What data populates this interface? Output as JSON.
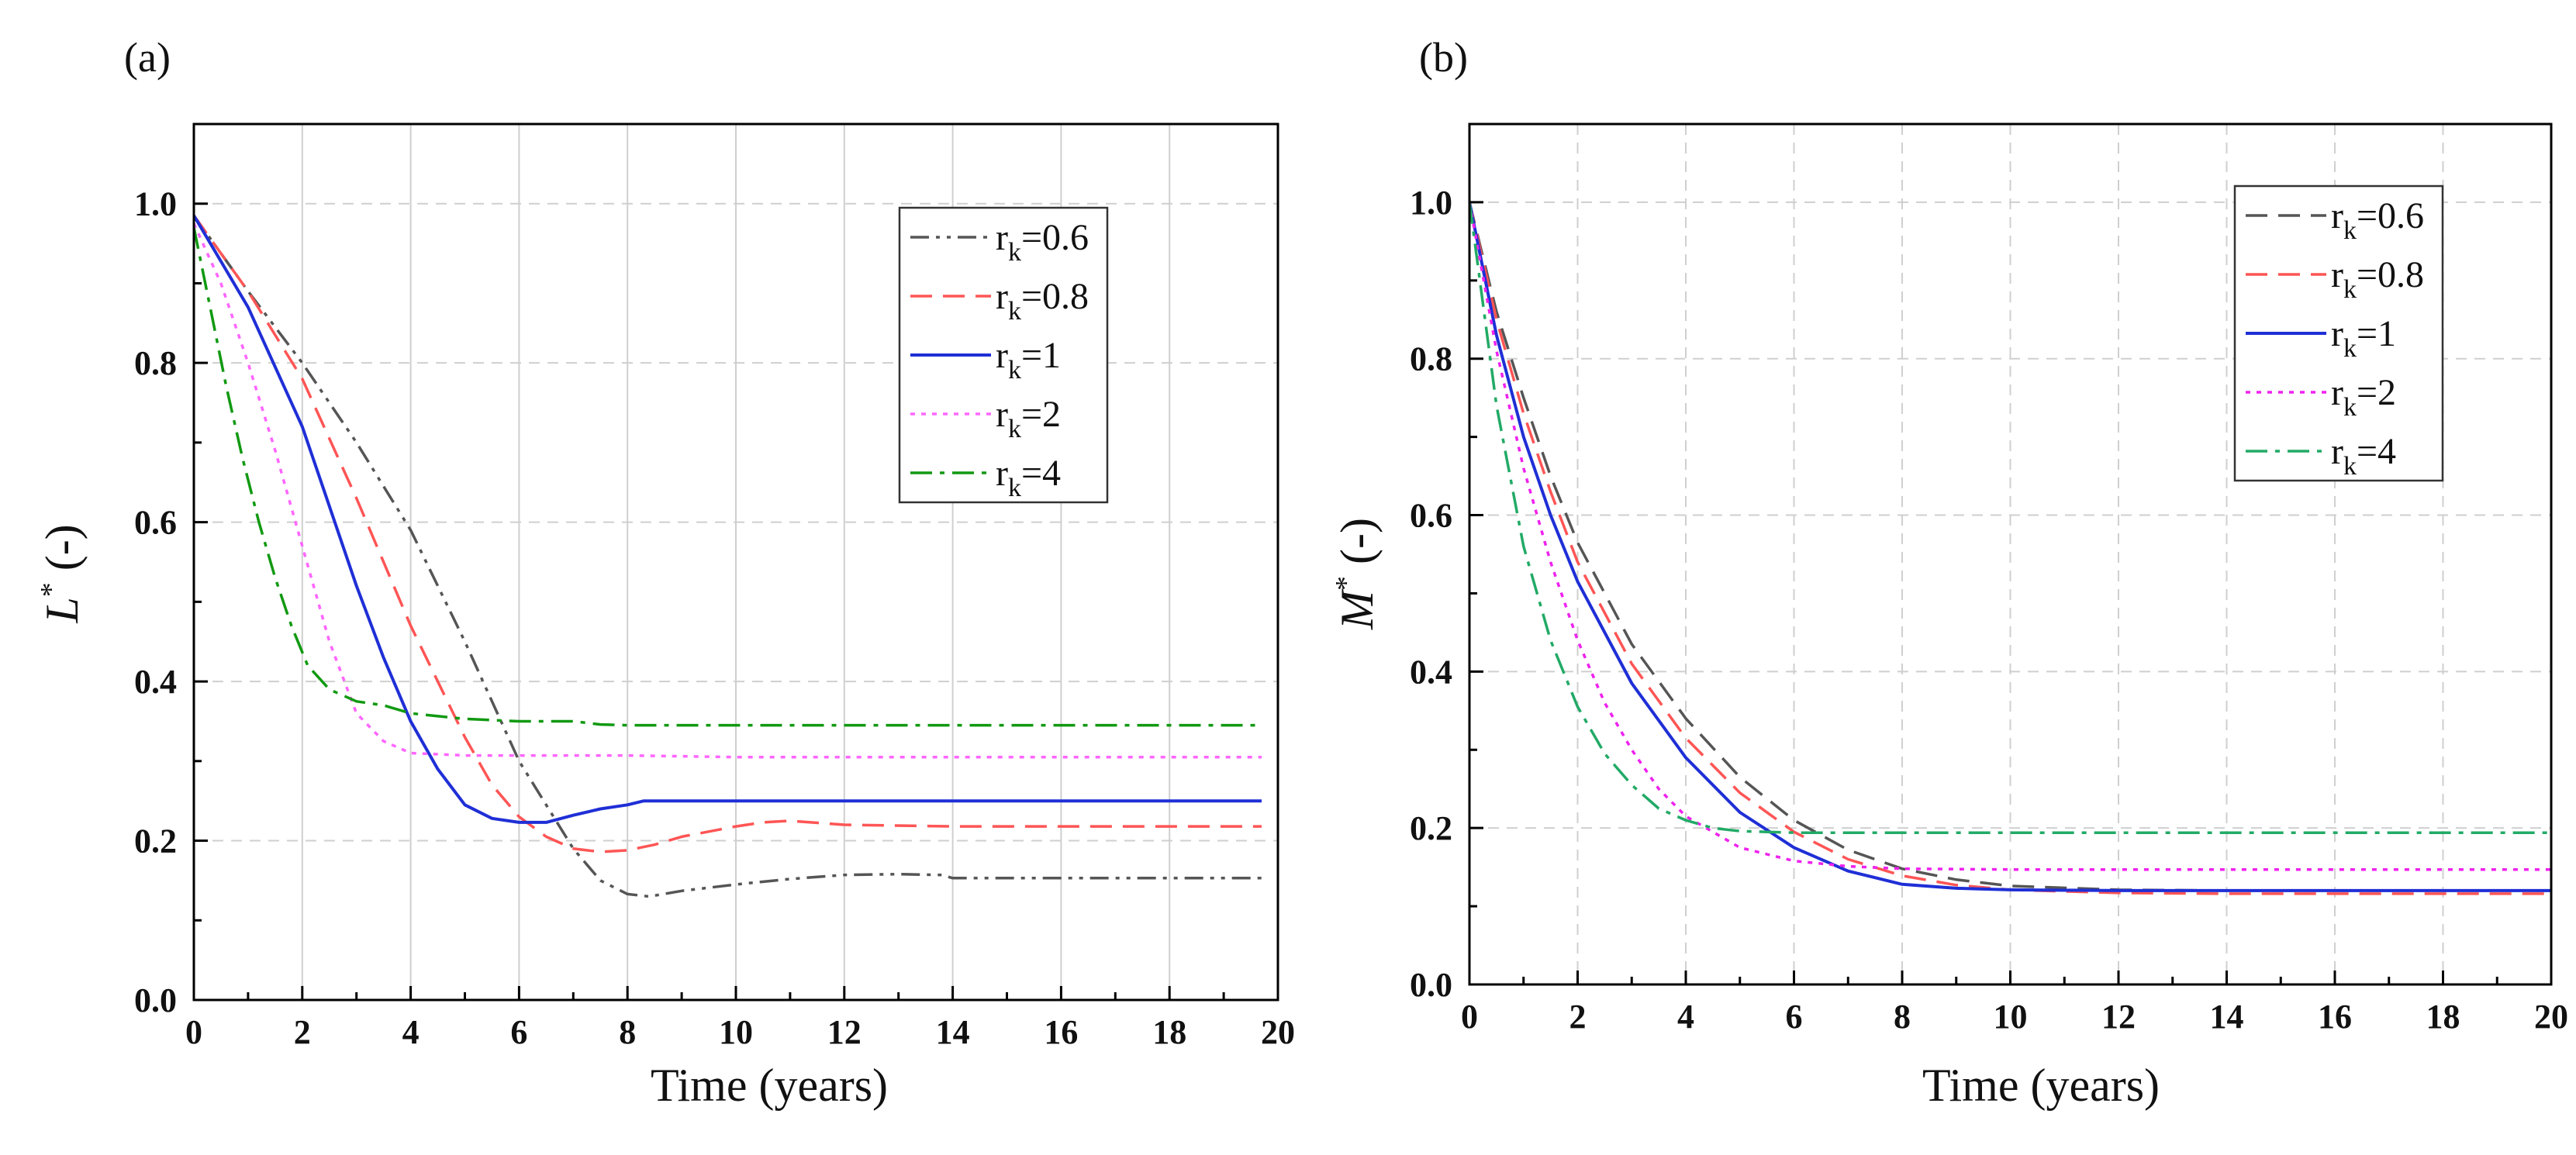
{
  "chart_data": [
    {
      "panel": "(a)",
      "type": "line",
      "xlabel": "Time (years)",
      "ylabel_main": "L",
      "ylabel_sup": "*",
      "ylabel_rest": " (-)",
      "xlim": [
        0,
        20
      ],
      "ylim": [
        0,
        1.1
      ],
      "xticks": [
        0,
        2,
        4,
        6,
        8,
        10,
        12,
        14,
        16,
        18,
        20
      ],
      "yticks": [
        0.0,
        0.2,
        0.4,
        0.6,
        0.8,
        1.0
      ],
      "grid": "on",
      "legend_position": "top-right",
      "series": [
        {
          "legend_main": "r",
          "legend_sub": "k",
          "legend_rest": "=0.6",
          "color": "#555555",
          "style": "dashdotdot",
          "x": [
            0,
            1,
            2,
            3,
            4,
            5,
            6,
            7,
            7.5,
            8,
            8.4,
            9,
            10,
            11,
            12,
            13,
            13.8,
            14,
            15,
            16,
            18,
            19.7
          ],
          "y": [
            0.985,
            0.89,
            0.8,
            0.7,
            0.59,
            0.45,
            0.3,
            0.19,
            0.15,
            0.133,
            0.13,
            0.137,
            0.145,
            0.152,
            0.157,
            0.158,
            0.157,
            0.153,
            0.153,
            0.153,
            0.153,
            0.153
          ]
        },
        {
          "legend_main": "r",
          "legend_sub": "k",
          "legend_rest": "=0.8",
          "color": "#ff5555",
          "style": "dashed",
          "x": [
            0,
            1,
            2,
            3,
            4,
            5,
            5.5,
            6,
            6.5,
            7,
            7.5,
            8,
            8.5,
            9,
            10,
            10.5,
            11,
            12,
            14,
            16,
            18,
            19.7
          ],
          "y": [
            0.985,
            0.89,
            0.78,
            0.63,
            0.47,
            0.33,
            0.27,
            0.23,
            0.205,
            0.19,
            0.186,
            0.188,
            0.195,
            0.205,
            0.218,
            0.223,
            0.225,
            0.22,
            0.218,
            0.218,
            0.218,
            0.218
          ]
        },
        {
          "legend_main": "r",
          "legend_sub": "k",
          "legend_rest": "=1",
          "color": "#1f2fd6",
          "style": "solid",
          "x": [
            0,
            1,
            2,
            2.5,
            3,
            3.5,
            4,
            4.5,
            5,
            5.5,
            6,
            6.5,
            7,
            7.5,
            8,
            8.3,
            9,
            10,
            12,
            14,
            16,
            18,
            19.7
          ],
          "y": [
            0.985,
            0.87,
            0.72,
            0.62,
            0.52,
            0.43,
            0.35,
            0.29,
            0.245,
            0.228,
            0.223,
            0.223,
            0.232,
            0.24,
            0.245,
            0.25,
            0.25,
            0.25,
            0.25,
            0.25,
            0.25,
            0.25,
            0.25
          ]
        },
        {
          "legend_main": "r",
          "legend_sub": "k",
          "legend_rest": "=2",
          "color": "#ff66ff",
          "style": "dotted",
          "x": [
            0,
            0.5,
            1,
            1.5,
            2,
            2.5,
            3,
            3.5,
            4,
            5,
            6,
            8,
            10,
            12,
            16,
            19.7
          ],
          "y": [
            0.975,
            0.9,
            0.8,
            0.69,
            0.57,
            0.45,
            0.36,
            0.325,
            0.31,
            0.307,
            0.307,
            0.307,
            0.305,
            0.305,
            0.305,
            0.305
          ]
        },
        {
          "legend_main": "r",
          "legend_sub": "k",
          "legend_rest": "=4",
          "color": "#119911",
          "style": "dashdot",
          "x": [
            0,
            0.3,
            0.6,
            0.9,
            1.2,
            1.5,
            1.8,
            2.1,
            2.5,
            3,
            3.5,
            4,
            5,
            6,
            7,
            7.5,
            8,
            10,
            12,
            16,
            19.7
          ],
          "y": [
            0.97,
            0.87,
            0.77,
            0.68,
            0.6,
            0.53,
            0.47,
            0.42,
            0.39,
            0.375,
            0.37,
            0.36,
            0.353,
            0.35,
            0.35,
            0.346,
            0.345,
            0.345,
            0.345,
            0.345,
            0.345
          ]
        }
      ]
    },
    {
      "panel": "(b)",
      "type": "line",
      "xlabel": "Time (years)",
      "ylabel_main": "M",
      "ylabel_sup": "*",
      "ylabel_rest": " (-)",
      "xlim": [
        0,
        20
      ],
      "ylim": [
        0,
        1.1
      ],
      "xticks": [
        0,
        2,
        4,
        6,
        8,
        10,
        12,
        14,
        16,
        18,
        20
      ],
      "yticks": [
        0.0,
        0.2,
        0.4,
        0.6,
        0.8,
        1.0
      ],
      "grid": "on",
      "legend_position": "top-right",
      "series": [
        {
          "legend_main": "r",
          "legend_sub": "k",
          "legend_rest": "=0.6",
          "color": "#555555",
          "style": "dashed",
          "x": [
            0,
            0.5,
            1,
            1.5,
            2,
            3,
            4,
            5,
            6,
            7,
            8,
            9,
            10,
            12,
            14,
            16,
            18,
            20
          ],
          "y": [
            1.0,
            0.86,
            0.75,
            0.65,
            0.565,
            0.435,
            0.34,
            0.265,
            0.21,
            0.172,
            0.148,
            0.134,
            0.126,
            0.121,
            0.12,
            0.12,
            0.12,
            0.12
          ]
        },
        {
          "legend_main": "r",
          "legend_sub": "k",
          "legend_rest": "=0.8",
          "color": "#ff5555",
          "style": "dashed",
          "x": [
            0,
            0.5,
            1,
            1.5,
            2,
            3,
            4,
            5,
            6,
            7,
            8,
            9,
            10,
            12,
            14,
            16,
            18,
            20
          ],
          "y": [
            1.0,
            0.85,
            0.73,
            0.63,
            0.54,
            0.41,
            0.315,
            0.245,
            0.195,
            0.16,
            0.139,
            0.127,
            0.121,
            0.117,
            0.116,
            0.116,
            0.116,
            0.116
          ]
        },
        {
          "legend_main": "r",
          "legend_sub": "k",
          "legend_rest": "=1",
          "color": "#1f2fd6",
          "style": "solid",
          "x": [
            0,
            0.5,
            1,
            1.5,
            2,
            3,
            4,
            5,
            6,
            7,
            8,
            9,
            10,
            12,
            14,
            16,
            18,
            20
          ],
          "y": [
            1.0,
            0.83,
            0.7,
            0.6,
            0.515,
            0.385,
            0.29,
            0.22,
            0.175,
            0.145,
            0.128,
            0.123,
            0.121,
            0.12,
            0.12,
            0.12,
            0.12,
            0.12
          ]
        },
        {
          "legend_main": "r",
          "legend_sub": "k",
          "legend_rest": "=2",
          "color": "#ee22ee",
          "style": "dotted",
          "x": [
            0,
            0.5,
            1,
            1.5,
            2,
            2.5,
            3,
            3.5,
            4,
            5,
            6,
            7,
            8,
            10,
            12,
            16,
            20
          ],
          "y": [
            1.0,
            0.81,
            0.66,
            0.54,
            0.44,
            0.36,
            0.3,
            0.25,
            0.215,
            0.175,
            0.158,
            0.151,
            0.148,
            0.147,
            0.147,
            0.147,
            0.147
          ]
        },
        {
          "legend_main": "r",
          "legend_sub": "k",
          "legend_rest": "=4",
          "color": "#22aa66",
          "style": "dashdot",
          "x": [
            0,
            0.5,
            1,
            1.5,
            2,
            2.5,
            3,
            3.5,
            4,
            4.5,
            5,
            6,
            8,
            10,
            14,
            20
          ],
          "y": [
            1.0,
            0.74,
            0.56,
            0.44,
            0.355,
            0.295,
            0.255,
            0.225,
            0.21,
            0.2,
            0.196,
            0.194,
            0.194,
            0.194,
            0.194,
            0.194
          ]
        }
      ]
    }
  ]
}
